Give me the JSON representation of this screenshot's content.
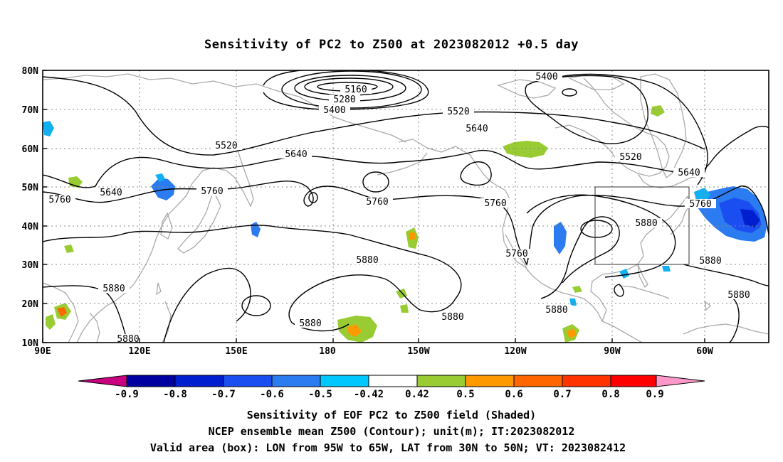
{
  "title": "Sensitivity of PC2 to Z500 at 2023082012 +0.5 day",
  "map": {
    "lon_labels": [
      "90E",
      "120E",
      "150E",
      "180",
      "150W",
      "120W",
      "90W",
      "60W"
    ],
    "lat_labels": [
      "10N",
      "20N",
      "30N",
      "40N",
      "50N",
      "60N",
      "70N",
      "80N"
    ],
    "contour_labels": [
      {
        "value": "5160"
      },
      {
        "value": "5280"
      },
      {
        "value": "5400"
      },
      {
        "value": "5400"
      },
      {
        "value": "5520"
      },
      {
        "value": "5520"
      },
      {
        "value": "5520"
      },
      {
        "value": "5640"
      },
      {
        "value": "5640"
      },
      {
        "value": "5640"
      },
      {
        "value": "5640"
      },
      {
        "value": "5760"
      },
      {
        "value": "5760"
      },
      {
        "value": "5760"
      },
      {
        "value": "5760"
      },
      {
        "value": "5760"
      },
      {
        "value": "5760"
      },
      {
        "value": "5880"
      },
      {
        "value": "5880"
      },
      {
        "value": "5880"
      },
      {
        "value": "5880"
      },
      {
        "value": "5880"
      },
      {
        "value": "5880"
      },
      {
        "value": "5880"
      },
      {
        "value": "5880"
      },
      {
        "value": "5880"
      }
    ],
    "valid_box": {
      "lon_from": "95W",
      "lon_to": "65W",
      "lat_from": "30N",
      "lat_to": "50N"
    }
  },
  "colorbar": {
    "labels": [
      "-0.9",
      "-0.8",
      "-0.7",
      "-0.6",
      "-0.5",
      "-0.42",
      "0.42",
      "0.5",
      "0.6",
      "0.7",
      "0.8",
      "0.9"
    ],
    "colors": [
      "#c8007f",
      "#0000a0",
      "#0020d0",
      "#1a4ef0",
      "#2a7cf0",
      "#12b0f0",
      "#00dcff",
      "#ffffff",
      "#99cc33",
      "#ff9900",
      "#ff6600",
      "#ff3300",
      "#ff0000",
      "#ff99cc"
    ]
  },
  "captions": {
    "line1": "Sensitivity of EOF PC2 to Z500 field (Shaded)",
    "line2": "NCEP ensemble mean Z500 (Contour); unit(m); IT:2023082012",
    "line3": "Valid area (box): LON from 95W to 65W, LAT from 30N to 50N; VT: 2023082412"
  }
}
